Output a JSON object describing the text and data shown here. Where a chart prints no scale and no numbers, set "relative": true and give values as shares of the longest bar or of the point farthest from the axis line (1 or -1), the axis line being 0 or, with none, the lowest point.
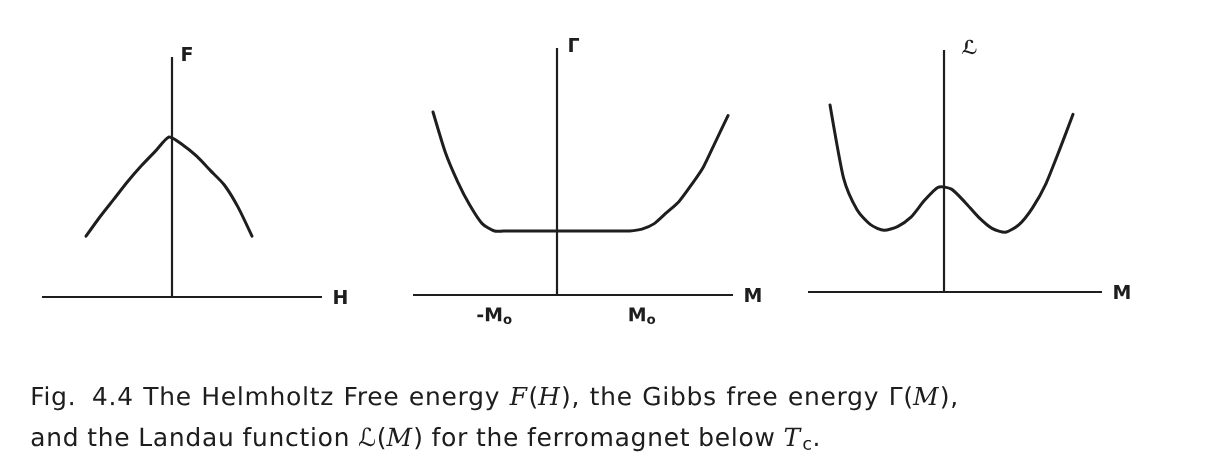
{
  "chart_data": [
    {
      "type": "line",
      "xlabel": "H",
      "ylabel": "F",
      "categories": [
        null,
        null,
        null,
        null,
        null,
        null,
        null,
        null,
        null,
        null,
        null,
        null,
        null
      ],
      "values": [
        0.38,
        0.5,
        0.61,
        0.72,
        0.82,
        0.91,
        1,
        0.95,
        0.88,
        0.79,
        0.7,
        0.56,
        0.38
      ],
      "color": "#1e1e1e",
      "relative": true,
      "annotations": [
        "Fig. 4.4 The Helmholtz Free energy *F*(*H*), the Gibbs free energy Γ(*M*), and the Landau function ℒ(*M*) for the ferromagnet below *T*$_{c}$."
      ]
    },
    {
      "type": "line",
      "xlabel": "M",
      "ylabel": "Γ",
      "categories": [
        null,
        null,
        null,
        null,
        null,
        "-M$_{o}$",
        null,
        null,
        null,
        null,
        null,
        null,
        null,
        null,
        null,
        null,
        null,
        "M$_{o}$",
        null,
        null,
        null,
        null,
        null,
        null,
        null
      ],
      "values": [
        1,
        0.78,
        0.62,
        0.49,
        0.39,
        0.35,
        0.35,
        0.35,
        0.35,
        0.35,
        0.35,
        0.35,
        0.35,
        0.35,
        0.35,
        0.35,
        0.35,
        0.36,
        0.39,
        0.45,
        0.51,
        0.6,
        0.7,
        0.84,
        0.98
      ],
      "color": "#1e1e1e",
      "relative": true
    },
    {
      "type": "line",
      "xlabel": "M",
      "ylabel": "ℒ",
      "categories": [
        null,
        null,
        null,
        null,
        null,
        null,
        null,
        null,
        null,
        null,
        null,
        null,
        null,
        null,
        null,
        null,
        null,
        null,
        null
      ],
      "values": [
        1,
        0.61,
        0.44,
        0.36,
        0.33,
        0.35,
        0.4,
        0.49,
        0.56,
        0.55,
        0.48,
        0.4,
        0.34,
        0.32,
        0.36,
        0.45,
        0.58,
        0.76,
        0.95
      ],
      "color": "#1e1e1e",
      "relative": true
    }
  ]
}
